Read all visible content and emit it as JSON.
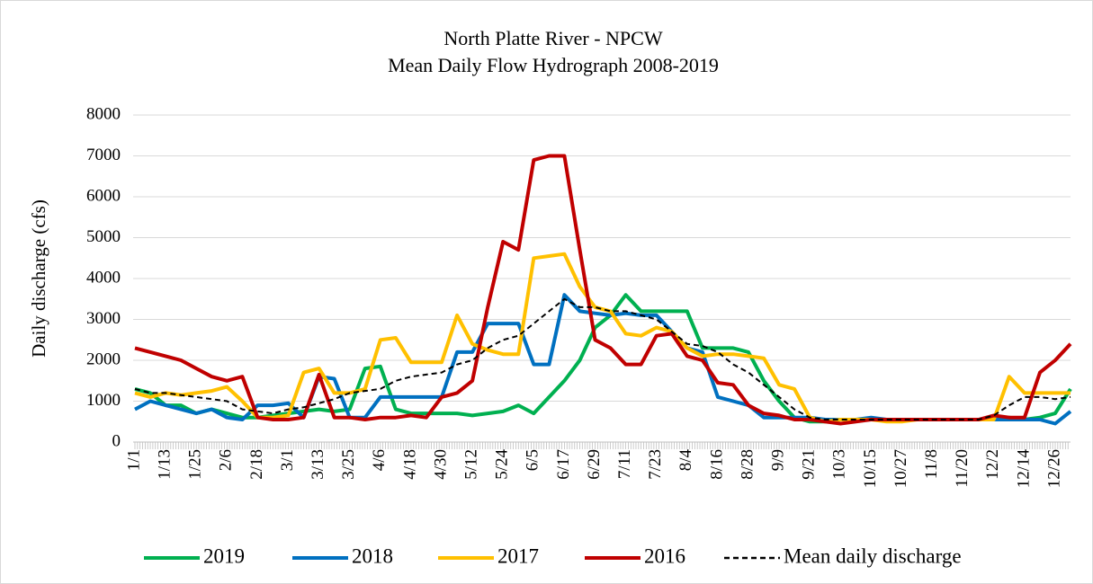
{
  "chart_data": {
    "type": "line",
    "title": "North Platte River - NPCW",
    "subtitle": "Mean Daily Flow Hydrograph 2008-2019",
    "y_label": "Daily discharge (cfs)",
    "categories": [
      "1/1",
      null,
      "1/13",
      null,
      "1/25",
      null,
      "2/6",
      null,
      "2/18",
      null,
      "3/1",
      null,
      "3/13",
      null,
      "3/25",
      null,
      "4/6",
      null,
      "4/18",
      null,
      "4/30",
      null,
      "5/12",
      null,
      "5/24",
      null,
      "6/5",
      null,
      "6/17",
      null,
      "6/29",
      null,
      "7/11",
      null,
      "7/23",
      null,
      "8/4",
      null,
      "8/16",
      null,
      "8/28",
      null,
      "9/9",
      null,
      "9/21",
      null,
      "10/3",
      null,
      "10/15",
      null,
      "10/27",
      null,
      "11/8",
      null,
      "11/20",
      null,
      "12/2",
      null,
      "12/14",
      null,
      "12/26",
      null
    ],
    "series": [
      {
        "name": "2019",
        "color": "#00b050",
        "style": "solid",
        "values": [
          1300,
          1200,
          900,
          900,
          700,
          800,
          700,
          600,
          600,
          650,
          700,
          750,
          800,
          750,
          800,
          1800,
          1850,
          800,
          700,
          700,
          700,
          700,
          650,
          700,
          750,
          900,
          700,
          1100,
          1500,
          2000,
          2800,
          3100,
          3600,
          3200,
          3200,
          3200,
          3200,
          2300,
          2300,
          2300,
          2200,
          1500,
          1000,
          600,
          500,
          500,
          550,
          550,
          550,
          550,
          550,
          550,
          550,
          550,
          550,
          550,
          550,
          600,
          550,
          600,
          700,
          1300
        ]
      },
      {
        "name": "2018",
        "color": "#0070c0",
        "style": "solid",
        "values": [
          800,
          1000,
          900,
          800,
          700,
          800,
          600,
          550,
          900,
          900,
          950,
          600,
          1600,
          1550,
          600,
          600,
          1100,
          1100,
          1100,
          1100,
          1100,
          2200,
          2200,
          2900,
          2900,
          2900,
          1900,
          1900,
          3600,
          3200,
          3150,
          3100,
          3150,
          3100,
          3100,
          2700,
          2300,
          2200,
          1100,
          1000,
          900,
          600,
          600,
          600,
          600,
          550,
          550,
          550,
          600,
          550,
          550,
          550,
          550,
          550,
          550,
          550,
          550,
          550,
          550,
          550,
          450,
          750
        ]
      },
      {
        "name": "2017",
        "color": "#ffc000",
        "style": "solid",
        "values": [
          1200,
          1100,
          1200,
          1150,
          1200,
          1250,
          1350,
          1000,
          600,
          600,
          650,
          1700,
          1800,
          1200,
          1200,
          1300,
          2500,
          2550,
          1950,
          1950,
          1950,
          3100,
          2400,
          2250,
          2150,
          2150,
          4500,
          4550,
          4600,
          3800,
          3300,
          3200,
          2650,
          2600,
          2800,
          2700,
          2300,
          2100,
          2150,
          2150,
          2100,
          2050,
          1400,
          1300,
          600,
          500,
          550,
          550,
          550,
          500,
          500,
          550,
          550,
          550,
          550,
          550,
          550,
          1600,
          1200,
          1200,
          1200,
          1200
        ]
      },
      {
        "name": "2016",
        "color": "#c00000",
        "style": "solid",
        "values": [
          2300,
          2200,
          2100,
          2000,
          1800,
          1600,
          1500,
          1600,
          600,
          550,
          550,
          600,
          1650,
          600,
          600,
          550,
          600,
          600,
          650,
          600,
          1100,
          1200,
          1500,
          3300,
          4900,
          4700,
          6900,
          7000,
          7000,
          4700,
          2500,
          2300,
          1900,
          1900,
          2600,
          2650,
          2100,
          2000,
          1450,
          1400,
          900,
          700,
          650,
          550,
          550,
          500,
          450,
          500,
          550,
          550,
          550,
          550,
          550,
          550,
          550,
          550,
          650,
          600,
          600,
          1700,
          2000,
          2400
        ]
      },
      {
        "name": "Mean daily discharge",
        "color": "#000000",
        "style": "dashed",
        "values": [
          1300,
          1200,
          1200,
          1150,
          1100,
          1050,
          1000,
          800,
          750,
          700,
          800,
          850,
          950,
          1050,
          1200,
          1250,
          1300,
          1500,
          1600,
          1650,
          1700,
          1900,
          2000,
          2300,
          2500,
          2600,
          2900,
          3200,
          3500,
          3300,
          3300,
          3200,
          3200,
          3100,
          3000,
          2700,
          2400,
          2350,
          2200,
          1900,
          1700,
          1400,
          1100,
          800,
          600,
          550,
          550,
          550,
          550,
          550,
          550,
          550,
          550,
          550,
          550,
          550,
          650,
          900,
          1100,
          1100,
          1050,
          1100
        ]
      }
    ],
    "ylim": [
      0,
      8000
    ],
    "yticks": [
      0,
      1000,
      2000,
      3000,
      4000,
      5000,
      6000,
      7000,
      8000
    ],
    "grid": true,
    "legend": "bottom"
  }
}
